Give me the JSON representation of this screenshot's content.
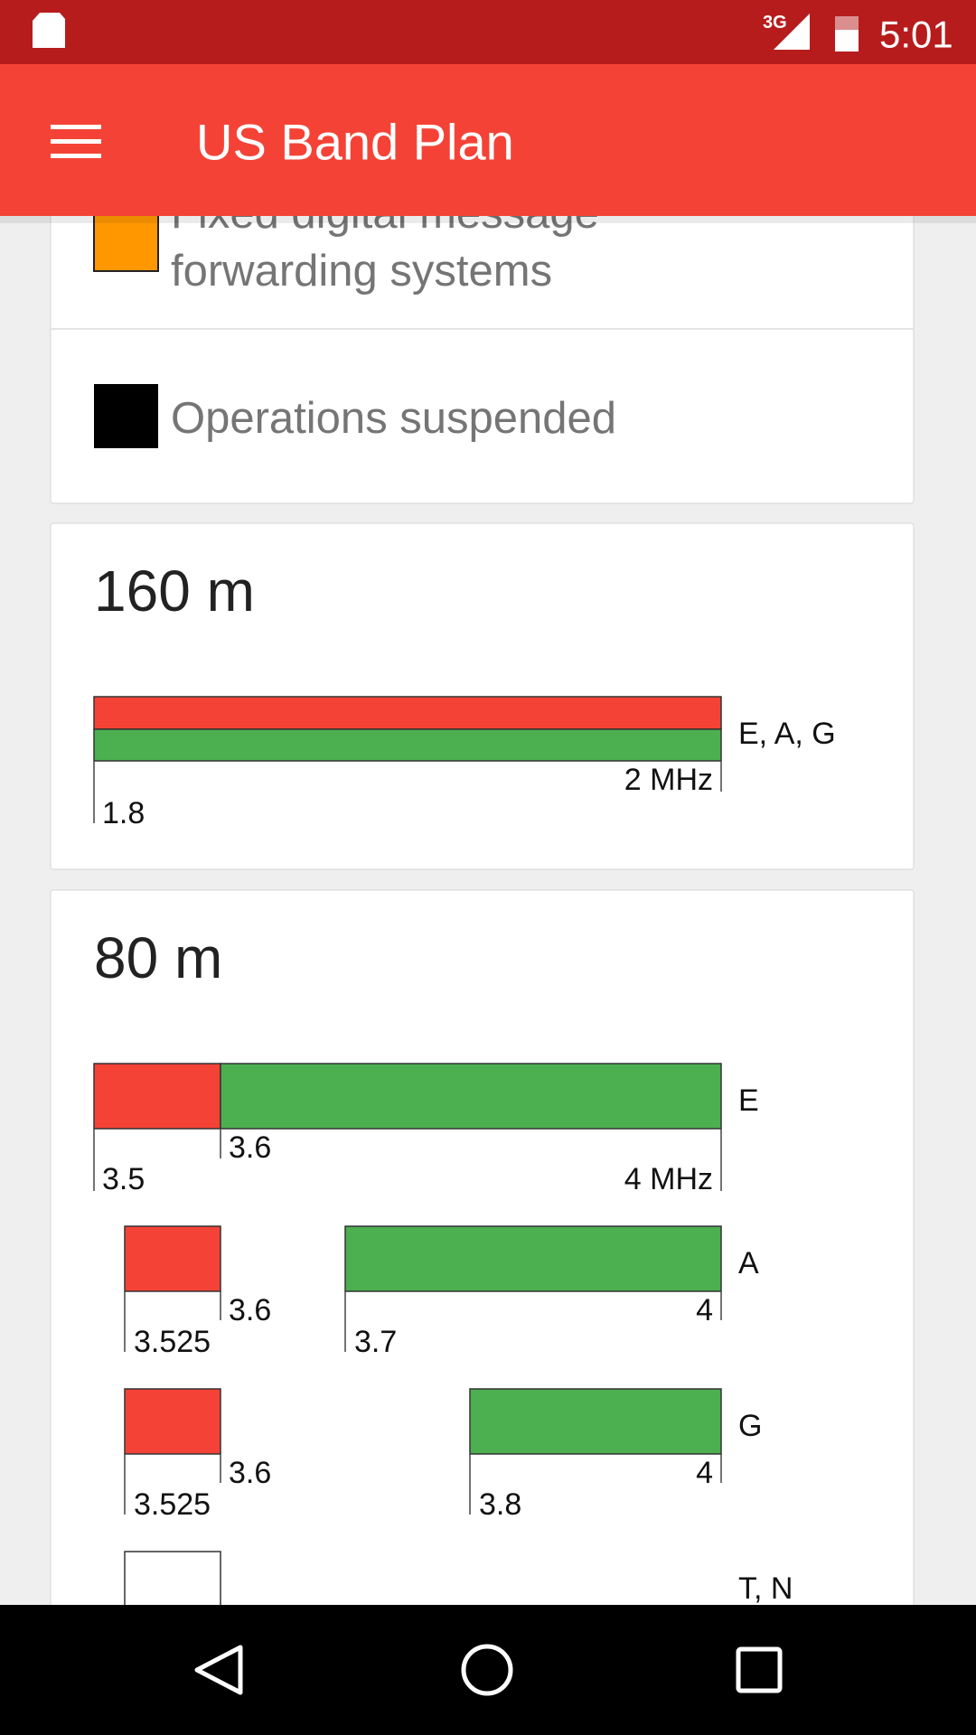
{
  "status_bar": {
    "network": "3G",
    "time": "5:01"
  },
  "app_bar": {
    "title": "US Band Plan"
  },
  "legend": [
    {
      "lines": [
        "Fixed digital message",
        "forwarding systems"
      ]
    },
    {
      "lines": [
        "Operations suspended"
      ]
    }
  ],
  "bands": [
    {
      "name": "160 m",
      "rows": [
        {
          "label": "E, A, G",
          "ticks": [
            "1.8",
            "2 MHz"
          ]
        }
      ]
    },
    {
      "name": "80 m",
      "rows": [
        {
          "label": "E",
          "ticks": [
            "3.5",
            "3.6",
            "4 MHz"
          ]
        },
        {
          "label": "A",
          "ticks": [
            "3.525",
            "3.6",
            "3.7",
            "4"
          ]
        },
        {
          "label": "G",
          "ticks": [
            "3.525",
            "3.6",
            "3.8",
            "4"
          ]
        },
        {
          "label": "T, N",
          "ticks": []
        }
      ]
    }
  ]
}
